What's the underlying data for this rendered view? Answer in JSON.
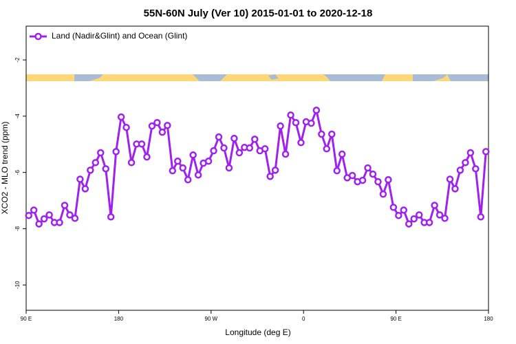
{
  "chart_data": {
    "type": "line",
    "title": "55N-60N July (Ver 10)   2015-01-01 to 2020-12-18",
    "x_label": "Longitude (deg E)",
    "y_label": "XCO2 - MLO trend (ppm)",
    "legend": "top-left",
    "x": [
      92.5,
      97.5,
      102.5,
      107.5,
      112.5,
      117.5,
      122.5,
      127.5,
      132.5,
      137.5,
      142.5,
      147.5,
      152.5,
      157.5,
      162.5,
      167.5,
      172.5,
      177.5,
      182.5,
      187.5,
      192.5,
      197.5,
      202.5,
      207.5,
      212.5,
      217.5,
      222.5,
      227.5,
      232.5,
      237.5,
      242.5,
      247.5,
      252.5,
      257.5,
      262.5,
      267.5,
      272.5,
      277.5,
      282.5,
      287.5,
      292.5,
      297.5,
      302.5,
      307.5,
      312.5,
      317.5,
      322.5,
      327.5,
      332.5,
      337.5,
      342.5,
      347.5,
      352.5,
      357.5,
      362.5,
      367.5,
      372.5,
      377.5,
      382.5,
      387.5,
      392.5,
      397.5,
      402.5,
      407.5,
      412.5,
      417.5,
      422.5,
      427.5,
      432.5,
      437.5,
      442.5,
      447.5,
      452.5,
      457.5,
      462.5,
      467.5,
      472.5,
      477.5,
      482.5,
      487.5,
      492.5,
      497.5,
      502.5,
      507.5,
      512.5,
      517.5,
      522.5,
      527.5,
      532.5,
      537.5
    ],
    "series": [
      {
        "name": "Land (Nadir&Glint) and Ocean (Glint)",
        "color": "#a020f0",
        "values": [
          -7.53,
          -7.34,
          -7.83,
          -7.65,
          -7.51,
          -7.78,
          -7.78,
          -7.17,
          -7.51,
          -7.63,
          -6.24,
          -6.58,
          -5.92,
          -5.65,
          -5.3,
          -5.87,
          -7.58,
          -5.26,
          -4.03,
          -4.4,
          -5.65,
          -4.99,
          -4.99,
          -5.45,
          -4.35,
          -4.23,
          -4.57,
          -4.33,
          -5.94,
          -5.6,
          -5.84,
          -6.26,
          -5.38,
          -6.09,
          -5.67,
          -5.6,
          -5.23,
          -4.74,
          -5.13,
          -5.84,
          -4.79,
          -5.3,
          -5.11,
          -5.13,
          -4.82,
          -5.23,
          -5.16,
          -6.14,
          -5.92,
          -4.35,
          -5.35,
          -3.96,
          -4.23,
          -4.94,
          -4.2,
          -4.25,
          -3.79,
          -4.64,
          -5.16,
          -4.64,
          -5.94,
          -5.35,
          -6.19,
          -6.11,
          -6.33,
          -6.28,
          -5.84,
          -6.06,
          -6.33,
          -6.77,
          -6.26,
          -7.24,
          -7.53,
          -7.34,
          -7.83,
          -7.65,
          -7.51,
          -7.78,
          -7.78,
          -7.17,
          -7.51,
          -7.63,
          -6.24,
          -6.58,
          -5.92,
          -5.65,
          -5.3,
          -5.87,
          -7.58,
          -5.26
        ]
      }
    ],
    "xlim": [
      90,
      540
    ],
    "xticks": [
      {
        "value": 90,
        "label": "90 E"
      },
      180,
      {
        "value": 270,
        "label": "90 W"
      },
      {
        "value": 360,
        "label": "0"
      },
      {
        "value": 450,
        "label": "90 E"
      },
      {
        "value": 540,
        "label": "180"
      }
    ],
    "ylim": [
      -10.9,
      -0.8
    ],
    "yticks": [
      -2,
      -4,
      -6,
      -8,
      -10
    ]
  }
}
